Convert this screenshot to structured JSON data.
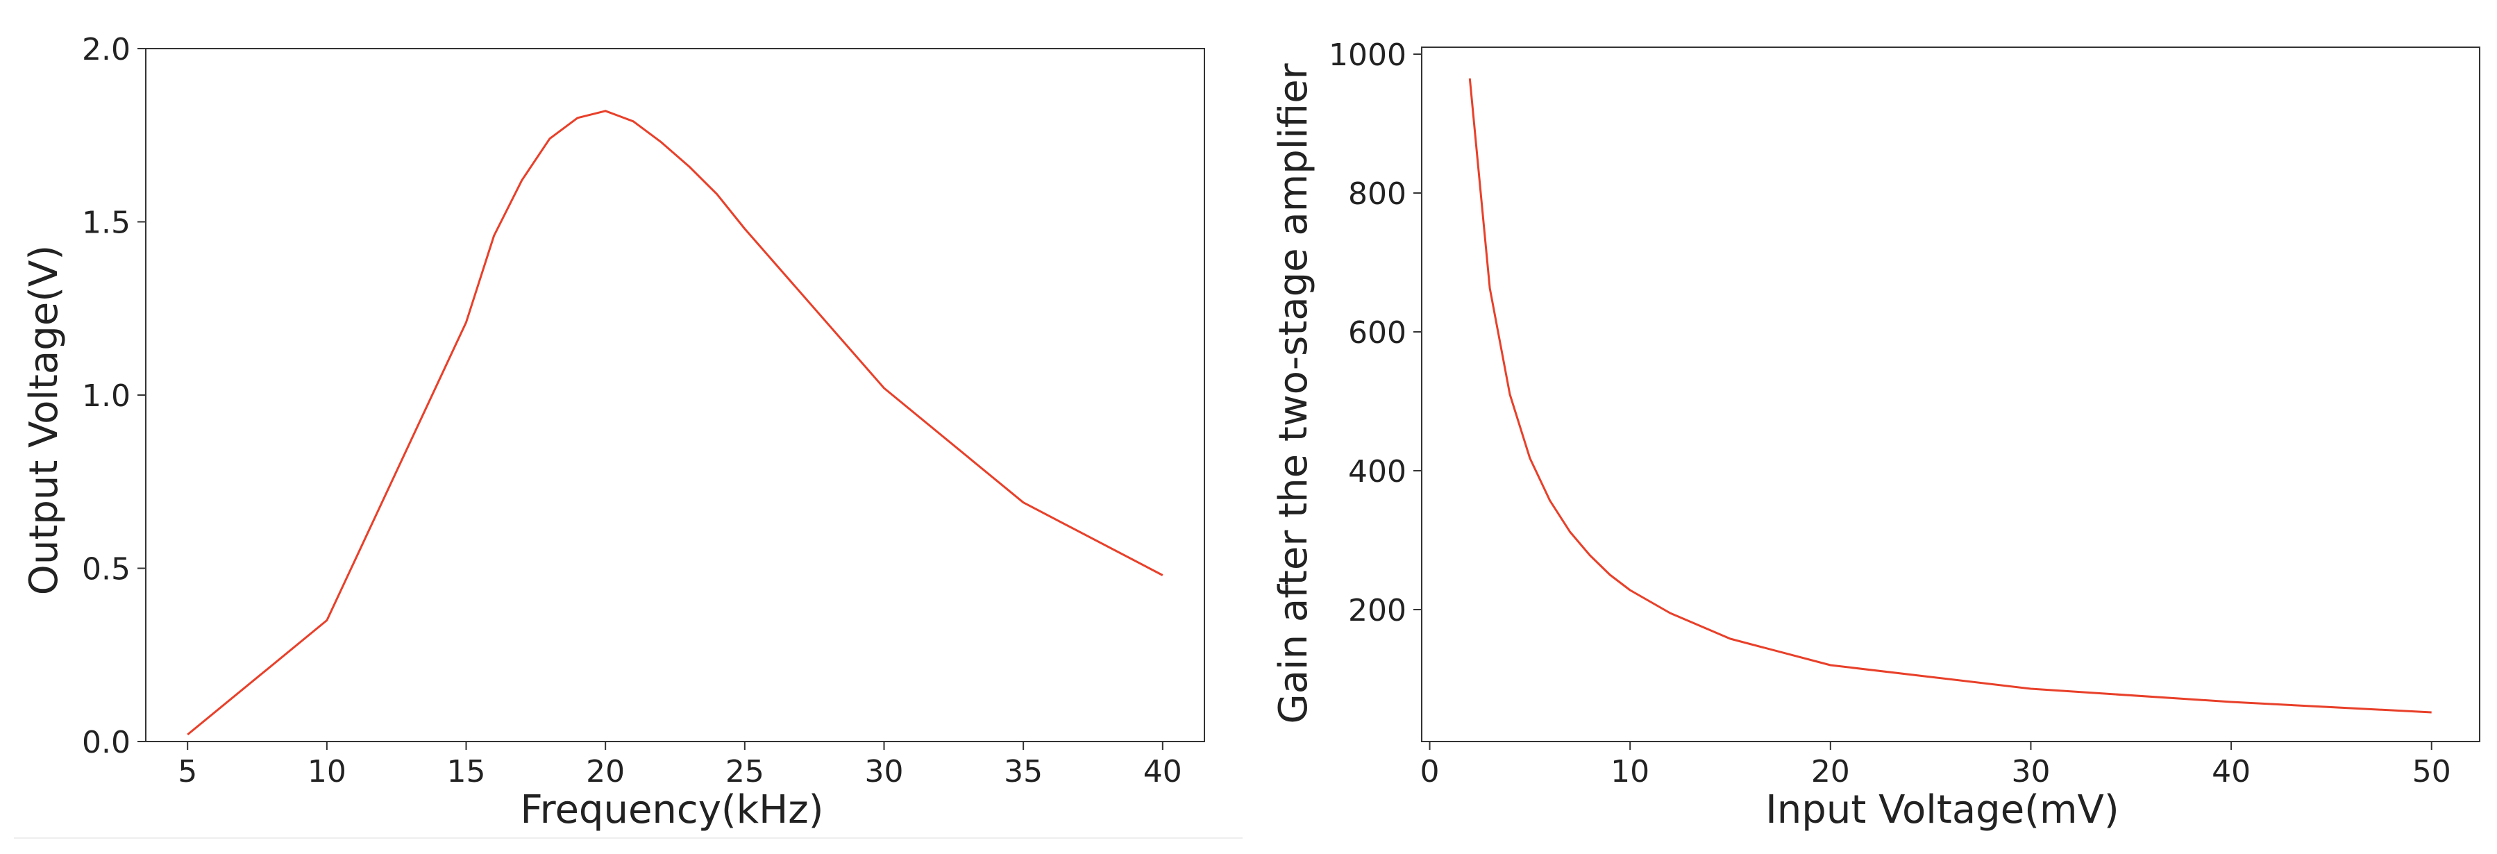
{
  "chart_data": [
    {
      "type": "line",
      "title": "",
      "xlabel": "Frequency(kHz)",
      "ylabel": "Output Voltage(V)",
      "xlim": [
        3.5,
        41.5
      ],
      "ylim": [
        0,
        2.0
      ],
      "xticks": [
        5,
        10,
        15,
        20,
        25,
        30,
        35,
        40
      ],
      "yticks": [
        0.0,
        0.5,
        1.0,
        1.5,
        2.0
      ],
      "xtick_labels": [
        "5",
        "10",
        "15",
        "20",
        "25",
        "30",
        "35",
        "40"
      ],
      "ytick_labels": [
        "0.0",
        "0.5",
        "1.0",
        "1.5",
        "2.0"
      ],
      "grid": false,
      "legend": "none",
      "series": [
        {
          "color": "#e8402a",
          "x": [
            5,
            10,
            15,
            16,
            17,
            18,
            19,
            20,
            21,
            22,
            23,
            24,
            25,
            30,
            35,
            40
          ],
          "y": [
            0.02,
            0.35,
            1.21,
            1.46,
            1.62,
            1.74,
            1.8,
            1.82,
            1.79,
            1.73,
            1.66,
            1.58,
            1.48,
            1.02,
            0.69,
            0.48
          ]
        }
      ]
    },
    {
      "type": "line",
      "title": "",
      "xlabel": "Input Voltage(mV)",
      "ylabel": "Gain after the two-stage amplifier",
      "xlim": [
        -0.4,
        52.4
      ],
      "ylim": [
        10,
        1010
      ],
      "xticks": [
        0,
        10,
        20,
        30,
        40,
        50
      ],
      "yticks": [
        200,
        400,
        600,
        800,
        1000
      ],
      "xtick_labels": [
        "0",
        "10",
        "20",
        "30",
        "40",
        "50"
      ],
      "ytick_labels": [
        "200",
        "400",
        "600",
        "800",
        "1000"
      ],
      "grid": false,
      "legend": "none",
      "series": [
        {
          "color": "#e8402a",
          "x": [
            2,
            3,
            4,
            5,
            6,
            7,
            8,
            9,
            10,
            12,
            15,
            20,
            25,
            30,
            40,
            50
          ],
          "y": [
            965,
            663,
            510,
            418,
            357,
            312,
            278,
            250,
            228,
            195,
            158,
            120,
            103,
            86,
            67,
            52
          ]
        }
      ]
    }
  ]
}
